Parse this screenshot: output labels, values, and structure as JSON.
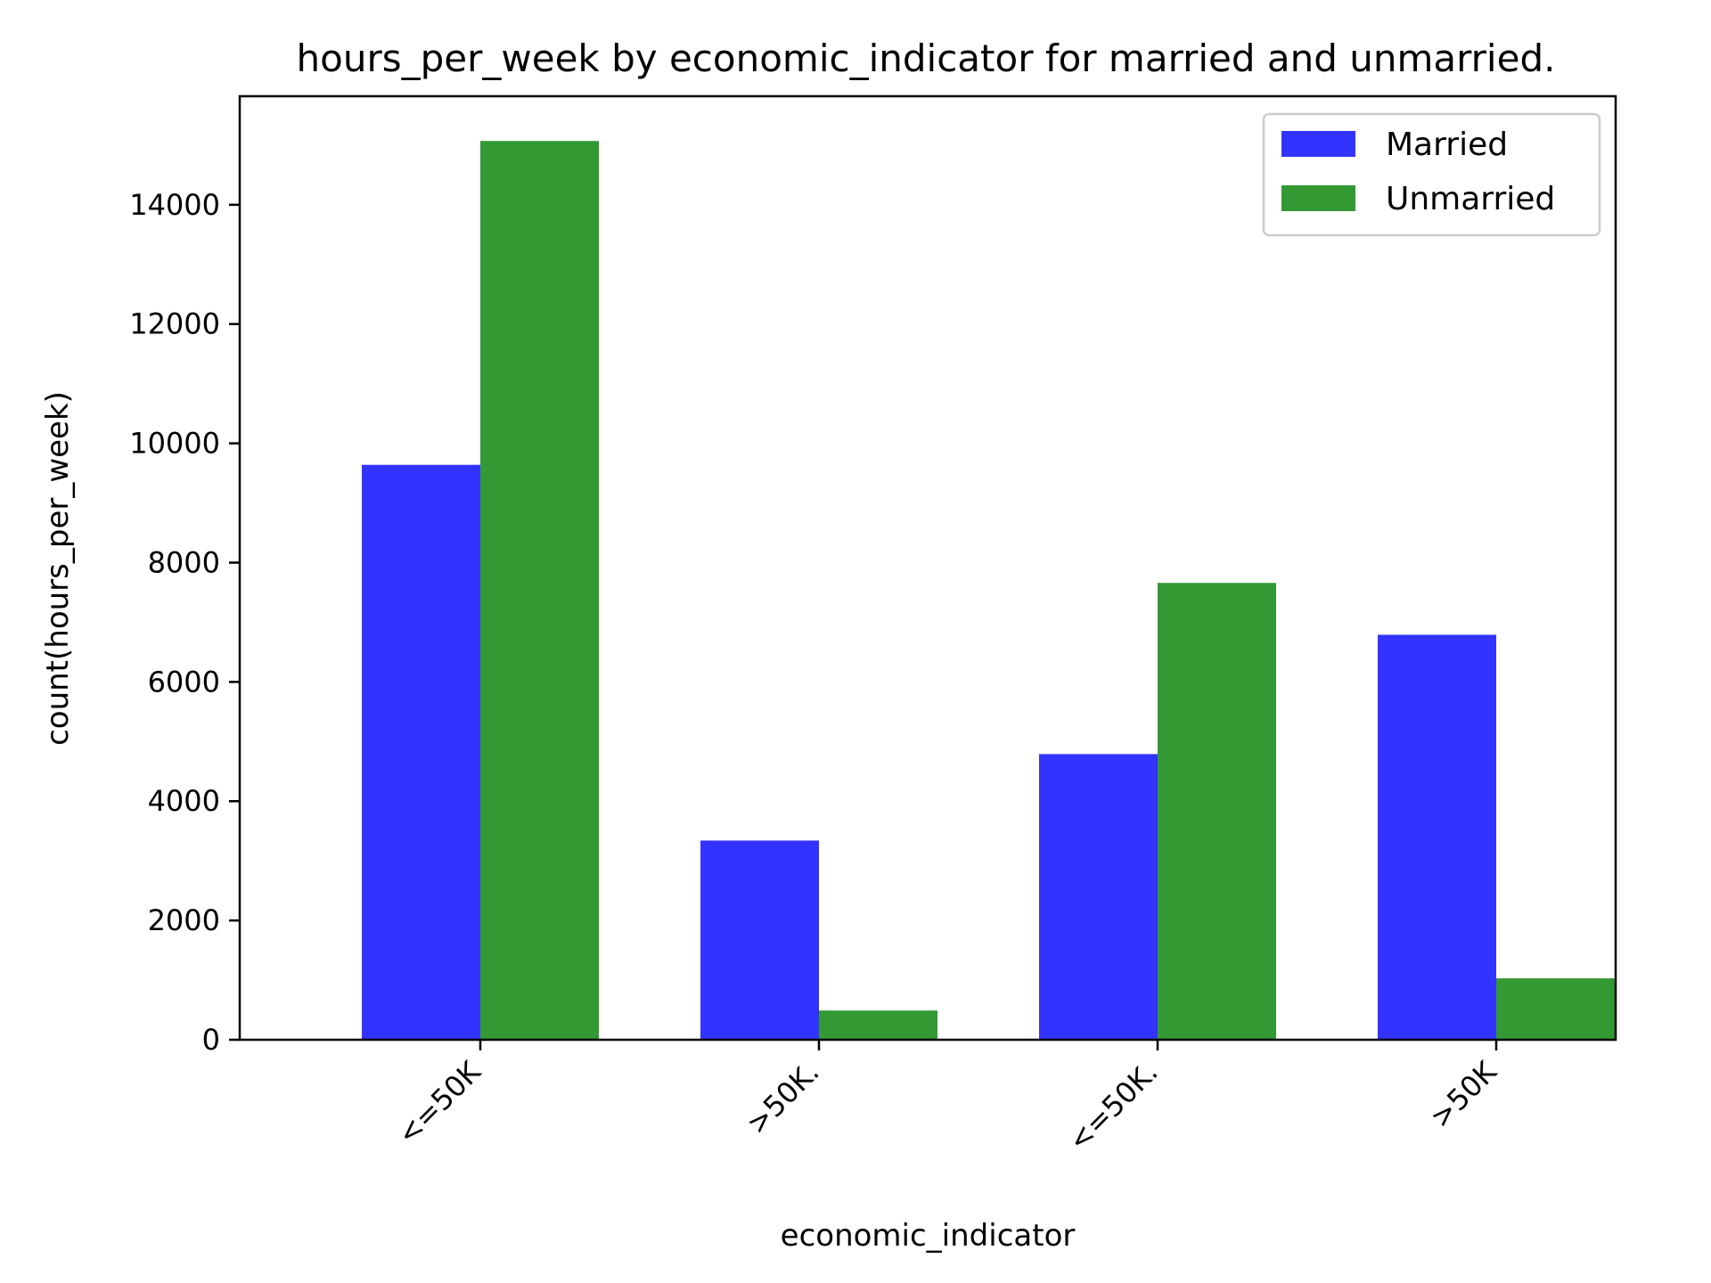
{
  "chart_data": {
    "type": "bar",
    "title": "hours_per_week by economic_indicator for married and unmarried.",
    "xlabel": "economic_indicator",
    "ylabel": "count(hours_per_week)",
    "categories": [
      "<=50K",
      ">50K.",
      "<=50K.",
      ">50K"
    ],
    "series": [
      {
        "name": "Married",
        "color": "#3333ff",
        "values": [
          9640,
          3340,
          4790,
          6790
        ]
      },
      {
        "name": "Unmarried",
        "color": "#339933",
        "values": [
          15070,
          490,
          7660,
          1030
        ]
      }
    ],
    "ylim": [
      0,
      15820
    ],
    "yticks": [
      0,
      2000,
      4000,
      6000,
      8000,
      10000,
      12000,
      14000
    ],
    "ytick_labels": [
      "0",
      "2000",
      "4000",
      "6000",
      "8000",
      "10000",
      "12000",
      "14000"
    ],
    "grid": false,
    "legend_position": "top-right"
  }
}
